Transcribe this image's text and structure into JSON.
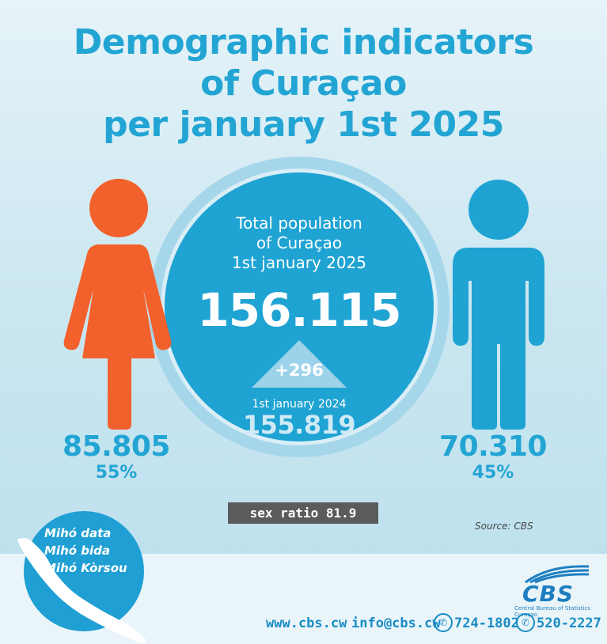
{
  "title": {
    "line1": "Demographic indicators",
    "line2": "of Curaçao",
    "line3": "per january 1st 2025"
  },
  "center": {
    "label_line1": "Total population",
    "label_line2": "of Curaçao",
    "label_line3": "1st january 2025",
    "total": "156.115",
    "change": "+296",
    "prev_label": "1st january 2024",
    "prev_total": "155.819"
  },
  "female": {
    "count": "85.805",
    "percent": "55%",
    "color": "#f2602b"
  },
  "male": {
    "count": "70.310",
    "percent": "45%",
    "color": "#1fa3d3"
  },
  "sex_ratio": "sex ratio 81.9",
  "source": "Source: CBS",
  "badge": {
    "line1": "Mihó data",
    "line2": "Mihó bida",
    "line3": "Mihó Kòrsou"
  },
  "logo": {
    "name": "CBS",
    "subtitle": "Central Bureau of Statistics Curaçao"
  },
  "contact": {
    "website": "www.cbs.cw",
    "email": "info@cbs.cw",
    "phone1": "724-1802",
    "phone2": "520-2227"
  },
  "colors": {
    "accent": "#23a5d4",
    "female": "#f2602b",
    "male": "#1fa3d3",
    "dark": "#5a5b5d"
  }
}
